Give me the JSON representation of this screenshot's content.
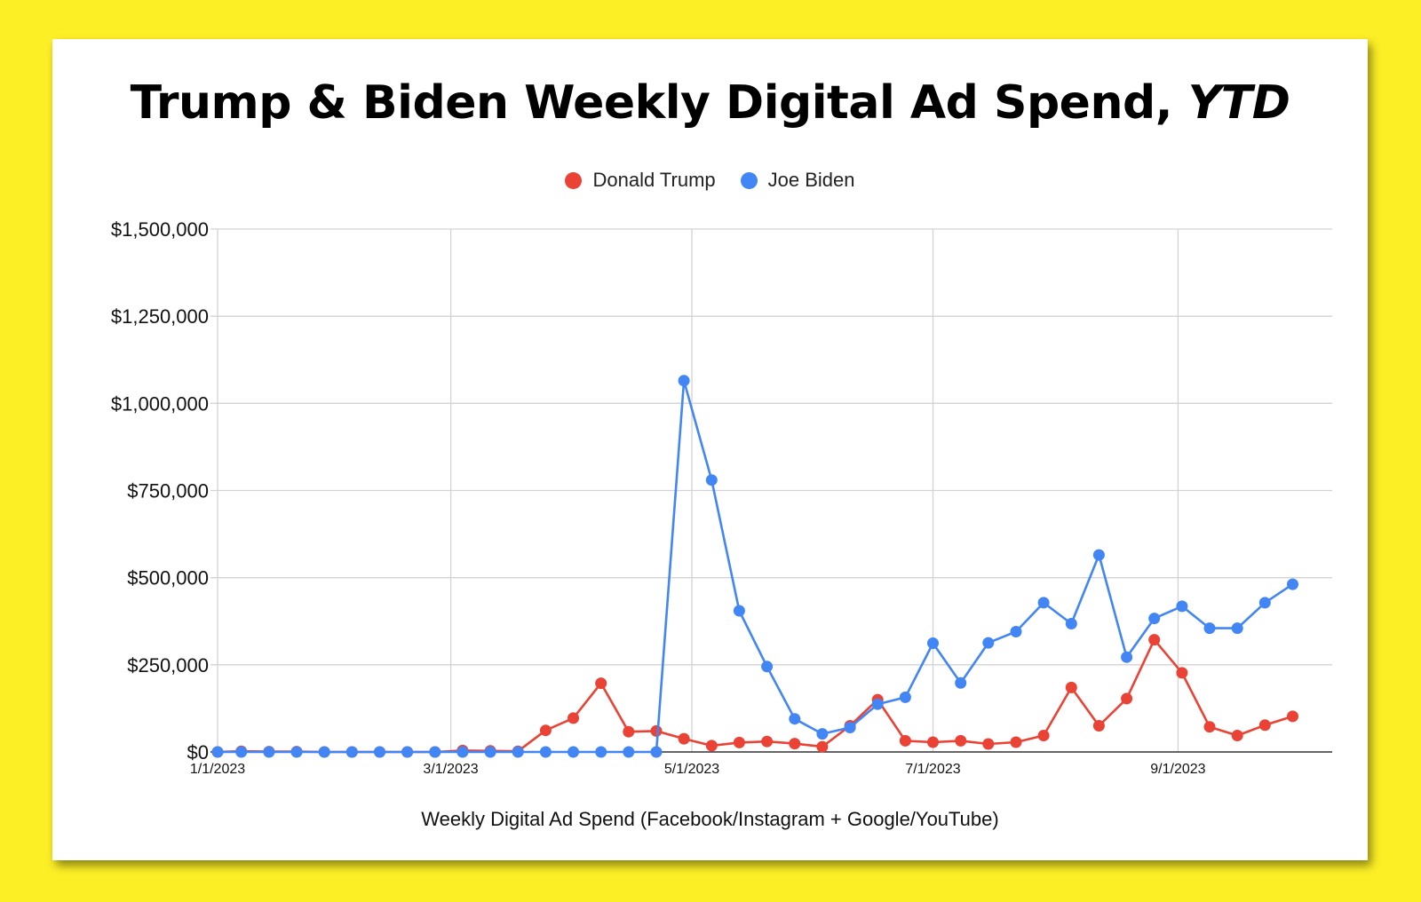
{
  "chart_data": {
    "type": "line",
    "title": "Trump & Biden Weekly Digital Ad Spend,",
    "title_emphasis": "YTD",
    "xlabel": "Weekly Digital Ad Spend (Facebook/Instagram + Google/YouTube)",
    "ylabel": "",
    "ylim": [
      0,
      1500000
    ],
    "y_ticks": [
      0,
      250000,
      500000,
      750000,
      1000000,
      1250000,
      1500000
    ],
    "y_tick_labels": [
      "$0",
      "$250,000",
      "$500,000",
      "$750,000",
      "$1,000,000",
      "$1,250,000",
      "$1,500,000"
    ],
    "x_range": [
      "2023-01-01",
      "2023-10-10"
    ],
    "x_ticks": [
      "2023-01-01",
      "2023-03-01",
      "2023-05-01",
      "2023-07-01",
      "2023-09-01"
    ],
    "x_tick_labels": [
      "1/1/2023",
      "3/1/2023",
      "5/1/2023",
      "7/1/2023",
      "9/1/2023"
    ],
    "grid": true,
    "legend_position": "top",
    "x": [
      "2023-01-01",
      "2023-01-07",
      "2023-01-14",
      "2023-01-21",
      "2023-01-28",
      "2023-02-04",
      "2023-02-11",
      "2023-02-18",
      "2023-02-25",
      "2023-03-04",
      "2023-03-11",
      "2023-03-18",
      "2023-03-25",
      "2023-04-01",
      "2023-04-08",
      "2023-04-15",
      "2023-04-22",
      "2023-04-29",
      "2023-05-06",
      "2023-05-13",
      "2023-05-20",
      "2023-05-27",
      "2023-06-03",
      "2023-06-10",
      "2023-06-17",
      "2023-06-24",
      "2023-07-01",
      "2023-07-08",
      "2023-07-15",
      "2023-07-22",
      "2023-07-29",
      "2023-08-05",
      "2023-08-12",
      "2023-08-19",
      "2023-08-26",
      "2023-09-02",
      "2023-09-09",
      "2023-09-16",
      "2023-09-23",
      "2023-09-30"
    ],
    "series": [
      {
        "name": "Donald Trump",
        "color": "#EA4335",
        "values": [
          0,
          2000,
          1000,
          1000,
          0,
          0,
          0,
          0,
          0,
          4000,
          3000,
          2000,
          62000,
          97000,
          197000,
          58000,
          60000,
          38000,
          18000,
          27000,
          30000,
          24000,
          15000,
          75000,
          150000,
          32000,
          28000,
          32000,
          23000,
          28000,
          47000,
          185000,
          75000,
          153000,
          322000,
          227000,
          72000,
          47000,
          77000,
          102000
        ]
      },
      {
        "name": "Joe Biden",
        "color": "#4285F4",
        "values": [
          0,
          0,
          0,
          0,
          0,
          0,
          0,
          0,
          0,
          0,
          0,
          0,
          0,
          0,
          0,
          0,
          0,
          1065000,
          780000,
          405000,
          245000,
          95000,
          52000,
          70000,
          137000,
          157000,
          312000,
          198000,
          313000,
          345000,
          428000,
          368000,
          565000,
          272000,
          383000,
          418000,
          355000,
          355000,
          428000,
          481000
        ]
      }
    ]
  }
}
